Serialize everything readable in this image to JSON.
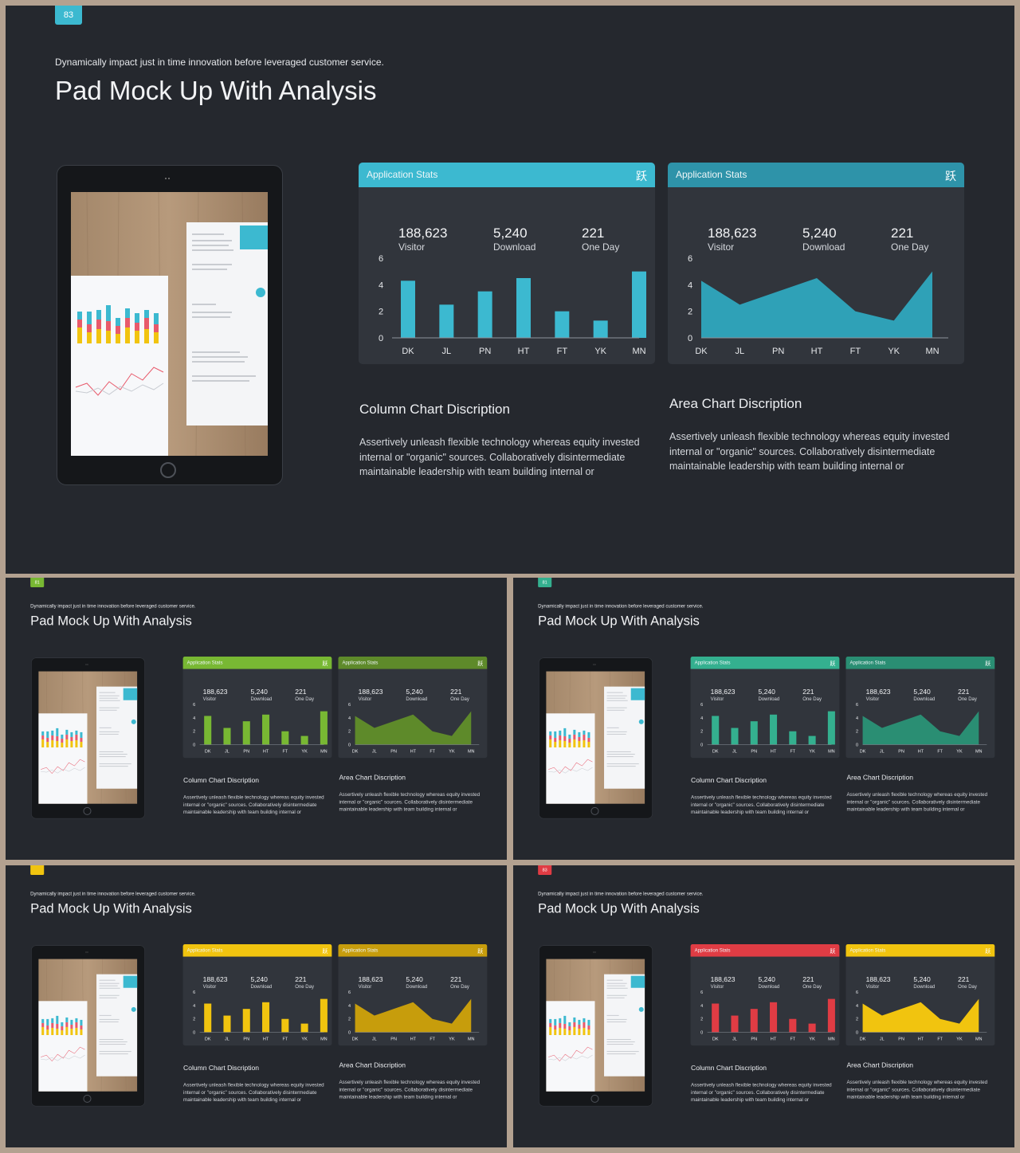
{
  "slide_common": {
    "subtitle": "Dynamically impact just in time innovation  before leveraged customer service.",
    "title": "Pad Mock Up With Analysis",
    "panel_title": "Application Stats",
    "panel_icon": "跃",
    "stats": [
      {
        "value": "188,623",
        "label": "Visitor"
      },
      {
        "value": "5,240",
        "label": "Download"
      },
      {
        "value": "221",
        "label": "One Day"
      }
    ],
    "column_desc_title": "Column  Chart Discription",
    "area_desc_title": "Area Chart Discription",
    "desc_text": "Assertively unleash flexible technology whereas equity invested internal or \"organic\" sources. Collaboratively disintermediate maintainable leadership with team building internal or"
  },
  "slides": [
    {
      "badge": "83",
      "accent_left": "#3cb9d0",
      "accent_right": "#2e93a9",
      "fill": "#2fa1b7"
    },
    {
      "badge": "81",
      "accent_left": "#78b833",
      "accent_right": "#5e8a2a",
      "fill": "#5e8a2a"
    },
    {
      "badge": "81",
      "accent_left": "#34b08f",
      "accent_right": "#2a8e73",
      "fill": "#2a8e73"
    },
    {
      "badge": "",
      "accent_left": "#f1c40f",
      "accent_right": "#c79d0c",
      "fill": "#c79d0c"
    },
    {
      "badge": "83",
      "accent_left": "#e03c44",
      "accent_right": "#f1c40f",
      "fill": "#f1c40f"
    }
  ],
  "chart_data": [
    {
      "type": "bar",
      "categories": [
        "DK",
        "JL",
        "PN",
        "HT",
        "FT",
        "YK",
        "MN"
      ],
      "values": [
        4.3,
        2.5,
        3.5,
        4.5,
        2.0,
        1.3,
        5.0
      ],
      "ylim": [
        0,
        6
      ],
      "yticks": [
        "0",
        "2",
        "4",
        "6"
      ]
    },
    {
      "type": "area",
      "categories": [
        "DK",
        "JL",
        "PN",
        "HT",
        "FT",
        "YK",
        "MN"
      ],
      "values": [
        4.3,
        2.5,
        3.5,
        4.5,
        2.0,
        1.3,
        5.0
      ],
      "ylim": [
        0,
        6
      ],
      "yticks": [
        "0",
        "2",
        "4",
        "6"
      ]
    }
  ]
}
